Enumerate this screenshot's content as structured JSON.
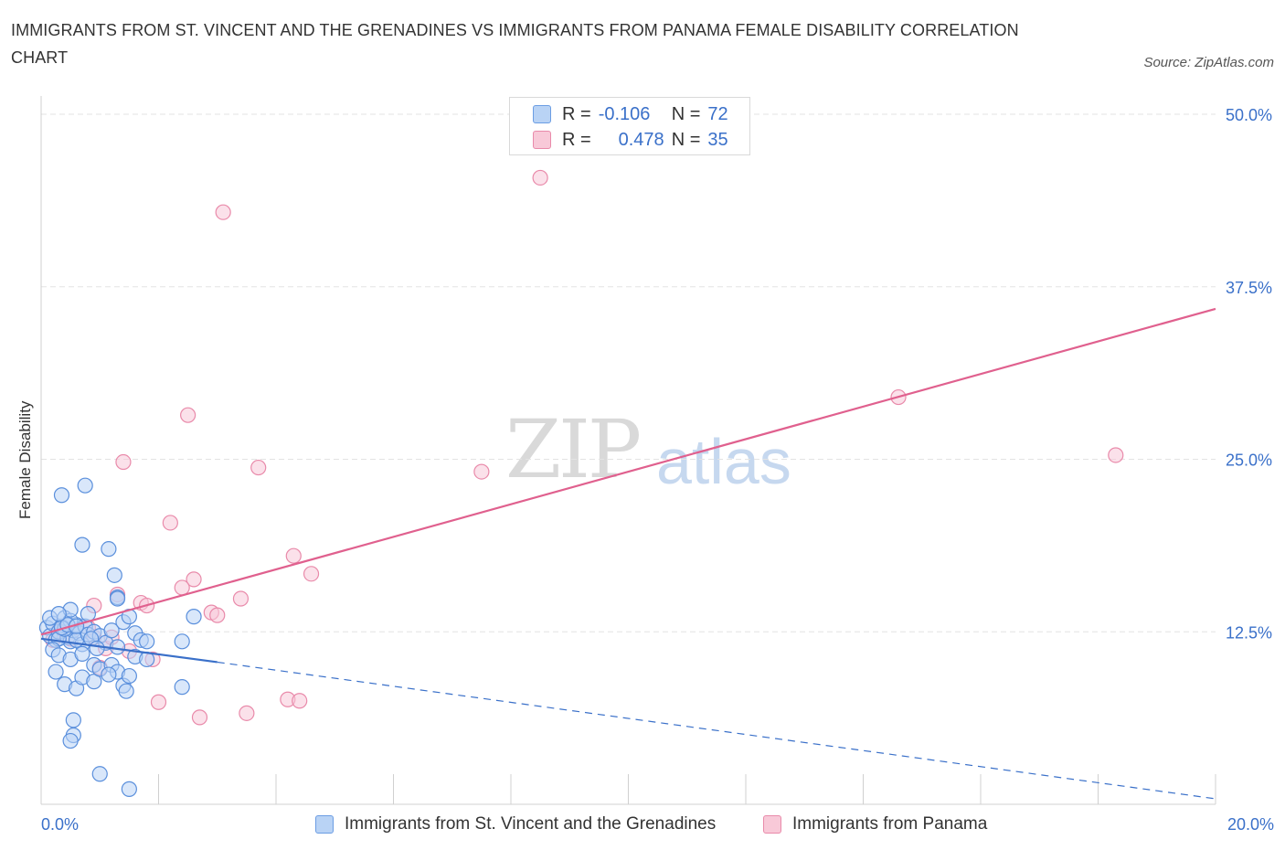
{
  "title": "IMMIGRANTS FROM ST. VINCENT AND THE GRENADINES VS IMMIGRANTS FROM PANAMA FEMALE DISABILITY CORRELATION CHART",
  "source": "Source: ZipAtlas.com",
  "watermark": {
    "zip": "ZIP",
    "atlas": "atlas"
  },
  "legend": {
    "series1": {
      "r_label": "R =",
      "r_value": "-0.106",
      "n_label": "N =",
      "n_value": "72"
    },
    "series2": {
      "r_label": "R =",
      "r_value": "0.478",
      "n_label": "N =",
      "n_value": "35"
    }
  },
  "colors": {
    "blue": "#3a70c9",
    "blue_fill": "#b9d3f5",
    "pink": "#e0608e",
    "pink_fill": "#f8c9d8"
  },
  "chart_data": {
    "type": "scatter",
    "xlabel": "",
    "ylabel": "Female Disability",
    "xlim": [
      0,
      20
    ],
    "ylim": [
      0,
      50
    ],
    "x_tick_labels": [
      "0.0%",
      "20.0%"
    ],
    "y_ticks": [
      12.5,
      25,
      37.5,
      50
    ],
    "y_tick_labels": [
      "12.5%",
      "25.0%",
      "37.5%",
      "50.0%"
    ],
    "grid": true,
    "series": [
      {
        "name": "Immigrants from St. Vincent and the Grenadines",
        "color": "#3a70c9",
        "trend": {
          "solid": [
            [
              0,
              12.0
            ],
            [
              3.0,
              10.3
            ]
          ],
          "dashed": [
            [
              3.0,
              10.3
            ],
            [
              20,
              0.4
            ]
          ]
        },
        "points": [
          [
            0.1,
            12.8
          ],
          [
            0.15,
            12.2
          ],
          [
            0.2,
            13.1
          ],
          [
            0.25,
            11.9
          ],
          [
            0.3,
            12.5
          ],
          [
            0.35,
            12.9
          ],
          [
            0.4,
            13.5
          ],
          [
            0.45,
            12.1
          ],
          [
            0.5,
            11.8
          ],
          [
            0.55,
            12.6
          ],
          [
            0.6,
            13.0
          ],
          [
            0.65,
            12.4
          ],
          [
            0.7,
            11.6
          ],
          [
            0.75,
            12.9
          ],
          [
            0.3,
            12.0
          ],
          [
            0.4,
            12.7
          ],
          [
            0.5,
            13.3
          ],
          [
            0.6,
            11.9
          ],
          [
            0.8,
            12.3
          ],
          [
            0.9,
            12.5
          ],
          [
            0.2,
            11.2
          ],
          [
            0.3,
            10.8
          ],
          [
            0.5,
            10.5
          ],
          [
            0.7,
            10.9
          ],
          [
            0.9,
            10.1
          ],
          [
            1.0,
            12.2
          ],
          [
            1.1,
            11.7
          ],
          [
            1.2,
            12.6
          ],
          [
            1.3,
            11.4
          ],
          [
            1.4,
            13.2
          ],
          [
            0.25,
            9.6
          ],
          [
            0.4,
            8.7
          ],
          [
            0.6,
            8.4
          ],
          [
            0.7,
            9.2
          ],
          [
            0.9,
            8.9
          ],
          [
            1.0,
            9.8
          ],
          [
            1.2,
            10.1
          ],
          [
            1.3,
            9.6
          ],
          [
            1.4,
            8.6
          ],
          [
            1.5,
            9.3
          ],
          [
            1.6,
            10.7
          ],
          [
            1.8,
            10.5
          ],
          [
            0.5,
            14.1
          ],
          [
            0.8,
            13.8
          ],
          [
            1.3,
            15.0
          ],
          [
            1.5,
            13.6
          ],
          [
            1.6,
            12.4
          ],
          [
            1.7,
            11.9
          ],
          [
            1.8,
            11.8
          ],
          [
            2.4,
            11.8
          ],
          [
            2.6,
            13.6
          ],
          [
            2.4,
            8.5
          ],
          [
            0.35,
            22.4
          ],
          [
            0.75,
            23.1
          ],
          [
            0.7,
            18.8
          ],
          [
            1.15,
            18.5
          ],
          [
            1.25,
            16.6
          ],
          [
            1.3,
            14.9
          ],
          [
            0.55,
            6.1
          ],
          [
            0.55,
            5.0
          ],
          [
            0.5,
            4.6
          ],
          [
            1.0,
            2.2
          ],
          [
            1.5,
            1.1
          ],
          [
            0.15,
            13.5
          ],
          [
            0.35,
            12.8
          ],
          [
            0.45,
            13.0
          ],
          [
            0.85,
            12.0
          ],
          [
            0.95,
            11.3
          ],
          [
            1.15,
            9.4
          ],
          [
            1.45,
            8.2
          ],
          [
            0.6,
            12.9
          ],
          [
            0.3,
            13.8
          ]
        ]
      },
      {
        "name": "Immigrants from Panama",
        "color": "#e0608e",
        "trend": {
          "solid": [
            [
              0,
              12.3
            ],
            [
              20,
              35.9
            ]
          ]
        },
        "points": [
          [
            8.5,
            45.4
          ],
          [
            3.1,
            42.9
          ],
          [
            2.5,
            28.2
          ],
          [
            1.4,
            24.8
          ],
          [
            3.7,
            24.4
          ],
          [
            7.5,
            24.1
          ],
          [
            14.6,
            29.5
          ],
          [
            18.3,
            25.3
          ],
          [
            2.2,
            20.4
          ],
          [
            4.3,
            18.0
          ],
          [
            4.6,
            16.7
          ],
          [
            2.6,
            16.3
          ],
          [
            2.4,
            15.7
          ],
          [
            1.3,
            15.2
          ],
          [
            1.7,
            14.6
          ],
          [
            1.8,
            14.4
          ],
          [
            3.4,
            14.9
          ],
          [
            0.9,
            14.4
          ],
          [
            2.9,
            13.9
          ],
          [
            3.0,
            13.7
          ],
          [
            0.9,
            12.1
          ],
          [
            1.1,
            11.3
          ],
          [
            1.2,
            12.1
          ],
          [
            1.5,
            11.1
          ],
          [
            1.9,
            10.5
          ],
          [
            0.5,
            12.0
          ],
          [
            0.3,
            12.6
          ],
          [
            0.2,
            11.9
          ],
          [
            2.0,
            7.4
          ],
          [
            2.7,
            6.3
          ],
          [
            3.5,
            6.6
          ],
          [
            4.2,
            7.6
          ],
          [
            4.4,
            7.5
          ],
          [
            0.8,
            12.8
          ],
          [
            1.0,
            9.9
          ]
        ]
      }
    ]
  },
  "bottom_legend": {
    "series1_label": "Immigrants from St. Vincent and the Grenadines",
    "series2_label": "Immigrants from Panama"
  }
}
